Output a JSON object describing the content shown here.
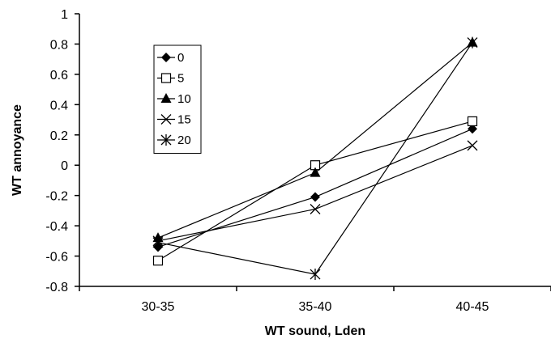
{
  "chart_data": {
    "type": "line",
    "title": "",
    "xlabel": "WT sound, Lden",
    "ylabel": "WT annoyance",
    "categories": [
      "30-35",
      "35-40",
      "40-45"
    ],
    "ylim": [
      -0.8,
      1
    ],
    "yticks": [
      "1",
      "0.8",
      "0.6",
      "0.4",
      "0.2",
      "0",
      "-0.2",
      "-0.4",
      "-0.6",
      "-0.8"
    ],
    "grid": false,
    "legend_position": "top-left",
    "series": [
      {
        "name": "0",
        "marker": "diamond",
        "values": [
          -0.54,
          -0.21,
          0.24
        ]
      },
      {
        "name": "5",
        "marker": "square-open",
        "values": [
          -0.63,
          0.0,
          0.29
        ]
      },
      {
        "name": "10",
        "marker": "triangle",
        "values": [
          -0.48,
          -0.05,
          0.81
        ]
      },
      {
        "name": "15",
        "marker": "x",
        "values": [
          -0.5,
          -0.29,
          0.13
        ]
      },
      {
        "name": "20",
        "marker": "star",
        "values": [
          -0.51,
          -0.72,
          0.81
        ]
      }
    ],
    "line_color": "#000000"
  }
}
